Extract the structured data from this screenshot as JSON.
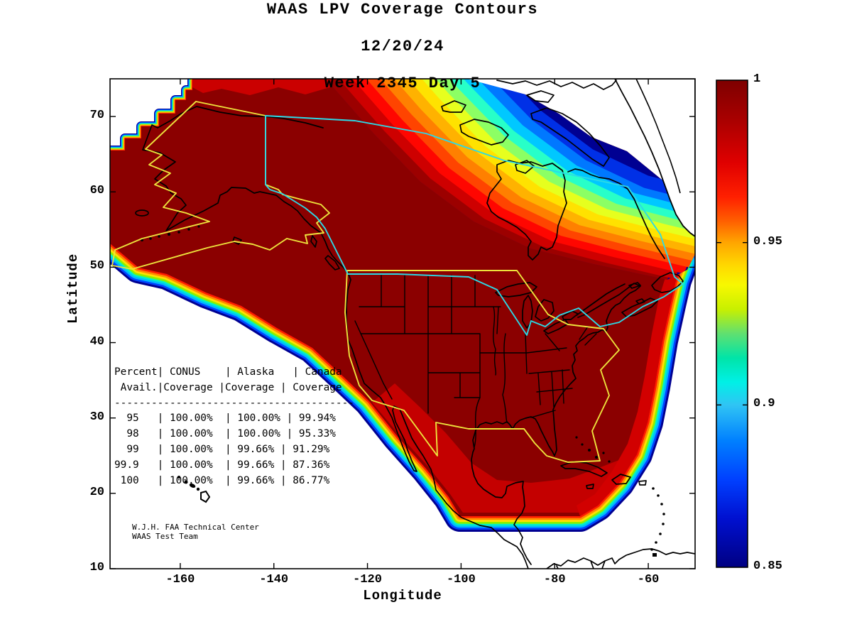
{
  "title": {
    "line1": "WAAS LPV Coverage Contours",
    "line2": "12/20/24",
    "line3": "Week 2345 Day 5"
  },
  "axes": {
    "xlabel": "Longitude",
    "ylabel": "Latitude",
    "x_ticks": [
      {
        "value": -160,
        "label": "-160"
      },
      {
        "value": -140,
        "label": "-140"
      },
      {
        "value": -120,
        "label": "-120"
      },
      {
        "value": -100,
        "label": "-100"
      },
      {
        "value": -80,
        "label": "-80"
      },
      {
        "value": -60,
        "label": "-60"
      }
    ],
    "y_ticks": [
      {
        "value": 10,
        "label": "10"
      },
      {
        "value": 20,
        "label": "20"
      },
      {
        "value": 30,
        "label": "30"
      },
      {
        "value": 40,
        "label": "40"
      },
      {
        "value": 50,
        "label": "50"
      },
      {
        "value": 60,
        "label": "60"
      },
      {
        "value": 70,
        "label": "70"
      }
    ]
  },
  "colorbar": {
    "min": 0.85,
    "max": 1,
    "colormap": "jet",
    "ticks": [
      {
        "value": 1,
        "label": "1"
      },
      {
        "value": 0.95,
        "label": "0.95"
      },
      {
        "value": 0.9,
        "label": "0.9"
      },
      {
        "value": 0.85,
        "label": "0.85"
      }
    ]
  },
  "coverage_table": {
    "lines": [
      "Percent| CONUS    | Alaska   | Canada",
      " Avail.|Coverage |Coverage | Coverage",
      "---------------------------------------",
      "  95   | 100.00%  | 100.00% | 99.94%",
      "  98   | 100.00%  | 100.00% | 95.33%",
      "  99   | 100.00%  | 99.66% | 91.29%",
      "99.9   | 100.00%  | 99.66% | 87.36%",
      " 100   | 100.00%  | 99.66% | 86.77%"
    ],
    "columns": [
      "Percent Avail.",
      "CONUS Coverage",
      "Alaska Coverage",
      "Canada Coverage"
    ],
    "rows": [
      [
        "95",
        "100.00%",
        "100.00%",
        "99.94%"
      ],
      [
        "98",
        "100.00%",
        "100.00%",
        "95.33%"
      ],
      [
        "99",
        "100.00%",
        "99.66%",
        "91.29%"
      ],
      [
        "99.9",
        "100.00%",
        "99.66%",
        "87.36%"
      ],
      [
        "100",
        "100.00%",
        "99.66%",
        "86.77%"
      ]
    ]
  },
  "credit": {
    "line1": "W.J.H. FAA Technical Center",
    "line2": "WAAS Test Team"
  },
  "chart_data": {
    "type": "heatmap",
    "title": "WAAS LPV Coverage Contours",
    "date": "12/20/24",
    "gps_week": "Week 2345 Day 5",
    "xlabel": "Longitude",
    "ylabel": "Latitude",
    "xlim": [
      -175,
      -50
    ],
    "ylim": [
      10,
      75
    ],
    "x_ticks": [
      -160,
      -140,
      -120,
      -100,
      -80,
      -60
    ],
    "y_ticks": [
      10,
      20,
      30,
      40,
      50,
      60,
      70
    ],
    "grid": false,
    "colorbar": {
      "min": 0.85,
      "max": 1,
      "ticks": [
        1,
        0.95,
        0.9,
        0.85
      ],
      "colormap": "jet",
      "max_color": "#8B0000",
      "min_color": "#000086"
    },
    "overlays": [
      {
        "name": "CONUS service volume outline",
        "color": "#EDE33C"
      },
      {
        "name": "Alaska service volume outline",
        "color": "#EDE33C"
      },
      {
        "name": "Canada region outline",
        "color": "#2BD9E6"
      },
      {
        "name": "coastlines and state borders",
        "color": "#000000"
      }
    ],
    "content_summary": "Filled contours of WAAS LPV availability over North America: availability near 1.0 (dark red) covers CONUS, Alaska and most of Canada; jet-colormap bands step down to 0.85 (dark blue) along the Pacific southwest edge, the Atlantic southeast edge and toward Greenland in the northeast; white areas beyond the contours have availability below 0.85.",
    "coverage_summary": [
      {
        "percent_avail": "95",
        "conus": "100.00%",
        "alaska": "100.00%",
        "canada": "99.94%"
      },
      {
        "percent_avail": "98",
        "conus": "100.00%",
        "alaska": "100.00%",
        "canada": "95.33%"
      },
      {
        "percent_avail": "99",
        "conus": "100.00%",
        "alaska": "99.66%",
        "canada": "91.29%"
      },
      {
        "percent_avail": "99.9",
        "conus": "100.00%",
        "alaska": "99.66%",
        "canada": "87.36%"
      },
      {
        "percent_avail": "100",
        "conus": "100.00%",
        "alaska": "99.66%",
        "canada": "86.77%"
      }
    ]
  }
}
